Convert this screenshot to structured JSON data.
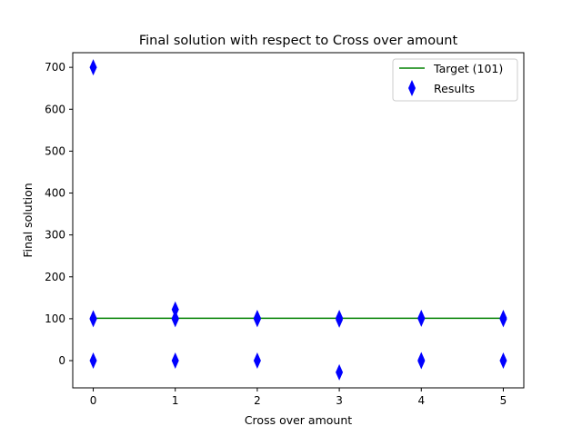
{
  "chart_data": {
    "type": "scatter",
    "title": "Final solution with respect to Cross over amount",
    "xlabel": "Cross over amount",
    "ylabel": "Final solution",
    "xlim": [
      -0.25,
      5.25
    ],
    "ylim": [
      -65,
      735
    ],
    "xticks": [
      0,
      1,
      2,
      3,
      4,
      5
    ],
    "yticks": [
      0,
      100,
      200,
      300,
      400,
      500,
      600,
      700
    ],
    "grid": false,
    "legend_position": "top-right",
    "target": {
      "name": "Target (101)",
      "value": 101,
      "x_range": [
        0,
        5
      ],
      "color": "#008000"
    },
    "results": {
      "name": "Results",
      "marker": "thin-diamond",
      "color": "#0000ff",
      "points": [
        {
          "x": 0,
          "y": 700
        },
        {
          "x": 0,
          "y": 101
        },
        {
          "x": 0,
          "y": 99
        },
        {
          "x": 0,
          "y": 0
        },
        {
          "x": 1,
          "y": 122
        },
        {
          "x": 1,
          "y": 101
        },
        {
          "x": 1,
          "y": 99
        },
        {
          "x": 1,
          "y": 0
        },
        {
          "x": 2,
          "y": 102
        },
        {
          "x": 2,
          "y": 99
        },
        {
          "x": 2,
          "y": 0
        },
        {
          "x": 3,
          "y": 102
        },
        {
          "x": 3,
          "y": 98
        },
        {
          "x": 3,
          "y": -28
        },
        {
          "x": 4,
          "y": 102
        },
        {
          "x": 4,
          "y": 100
        },
        {
          "x": 4,
          "y": 1
        },
        {
          "x": 4,
          "y": -1
        },
        {
          "x": 5,
          "y": 102
        },
        {
          "x": 5,
          "y": 99
        },
        {
          "x": 5,
          "y": 0
        }
      ]
    }
  }
}
